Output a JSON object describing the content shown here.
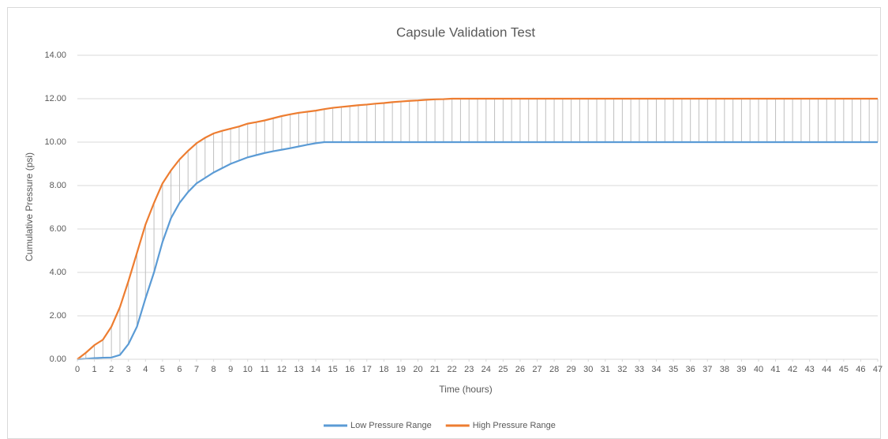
{
  "chart_data": {
    "type": "line",
    "title": "Capsule Validation Test",
    "xlabel": "Time (hours)",
    "ylabel": "Cumulative Pressure (psi)",
    "x": [
      0,
      0.5,
      1,
      1.5,
      2,
      2.5,
      3,
      3.5,
      4,
      4.5,
      5,
      5.5,
      6,
      6.5,
      7,
      7.5,
      8,
      8.5,
      9,
      9.5,
      10,
      10.5,
      11,
      11.5,
      12,
      12.5,
      13,
      13.5,
      14,
      14.5,
      15,
      15.5,
      16,
      16.5,
      17,
      17.5,
      18,
      18.5,
      19,
      19.5,
      20,
      20.5,
      21,
      21.5,
      22,
      22.5,
      23,
      23.5,
      24,
      24.5,
      25,
      25.5,
      26,
      26.5,
      27,
      27.5,
      28,
      28.5,
      29,
      29.5,
      30,
      30.5,
      31,
      31.5,
      32,
      32.5,
      33,
      33.5,
      34,
      34.5,
      35,
      35.5,
      36,
      36.5,
      37,
      37.5,
      38,
      38.5,
      39,
      39.5,
      40,
      40.5,
      41,
      41.5,
      42,
      42.5,
      43,
      43.5,
      44,
      44.5,
      45,
      45.5,
      46,
      46.5,
      47
    ],
    "series": [
      {
        "name": "Low Pressure Range",
        "color": "#5b9bd5",
        "values": [
          0,
          0.02,
          0.05,
          0.07,
          0.08,
          0.2,
          0.7,
          1.5,
          2.8,
          4,
          5.4,
          6.5,
          7.2,
          7.7,
          8.1,
          8.35,
          8.6,
          8.8,
          9,
          9.15,
          9.3,
          9.4,
          9.5,
          9.58,
          9.65,
          9.72,
          9.8,
          9.88,
          9.95,
          10,
          10,
          10,
          10,
          10,
          10,
          10,
          10,
          10,
          10,
          10,
          10,
          10,
          10,
          10,
          10,
          10,
          10,
          10,
          10,
          10,
          10,
          10,
          10,
          10,
          10,
          10,
          10,
          10,
          10,
          10,
          10,
          10,
          10,
          10,
          10,
          10,
          10,
          10,
          10,
          10,
          10,
          10,
          10,
          10,
          10,
          10,
          10,
          10,
          10,
          10,
          10,
          10,
          10,
          10,
          10,
          10,
          10,
          10,
          10,
          10,
          10,
          10,
          10,
          10,
          10
        ]
      },
      {
        "name": "High Pressure Range",
        "color": "#ed7d31",
        "values": [
          0,
          0.3,
          0.65,
          0.9,
          1.5,
          2.4,
          3.6,
          4.9,
          6.2,
          7.2,
          8.1,
          8.7,
          9.2,
          9.6,
          9.95,
          10.2,
          10.4,
          10.52,
          10.62,
          10.72,
          10.85,
          10.92,
          11,
          11.1,
          11.2,
          11.28,
          11.35,
          11.4,
          11.45,
          11.52,
          11.58,
          11.62,
          11.66,
          11.7,
          11.73,
          11.77,
          11.8,
          11.84,
          11.87,
          11.9,
          11.92,
          11.95,
          11.97,
          11.98,
          12,
          12,
          12,
          12,
          12,
          12,
          12,
          12,
          12,
          12,
          12,
          12,
          12,
          12,
          12,
          12,
          12,
          12,
          12,
          12,
          12,
          12,
          12,
          12,
          12,
          12,
          12,
          12,
          12,
          12,
          12,
          12,
          12,
          12,
          12,
          12,
          12,
          12,
          12,
          12,
          12,
          12,
          12,
          12,
          12,
          12,
          12,
          12,
          12,
          12,
          12
        ]
      }
    ],
    "xlim": [
      0,
      47
    ],
    "xticks": [
      0,
      1,
      2,
      3,
      4,
      5,
      6,
      7,
      8,
      9,
      10,
      11,
      12,
      13,
      14,
      15,
      16,
      17,
      18,
      19,
      20,
      21,
      22,
      23,
      24,
      25,
      26,
      27,
      28,
      29,
      30,
      31,
      32,
      33,
      34,
      35,
      36,
      37,
      38,
      39,
      40,
      41,
      42,
      43,
      44,
      45,
      46,
      47
    ],
    "ylim": [
      0,
      14
    ],
    "yticks": [
      {
        "value": 0,
        "label": "0.00"
      },
      {
        "value": 2,
        "label": "2.00"
      },
      {
        "value": 4,
        "label": "4.00"
      },
      {
        "value": 6,
        "label": "6.00"
      },
      {
        "value": 8,
        "label": "8.00"
      },
      {
        "value": 10,
        "label": "10.00"
      },
      {
        "value": 12,
        "label": "12.00"
      },
      {
        "value": 14,
        "label": "14.00"
      }
    ],
    "grid": true,
    "high_low_lines": true,
    "legend": "bottom"
  }
}
